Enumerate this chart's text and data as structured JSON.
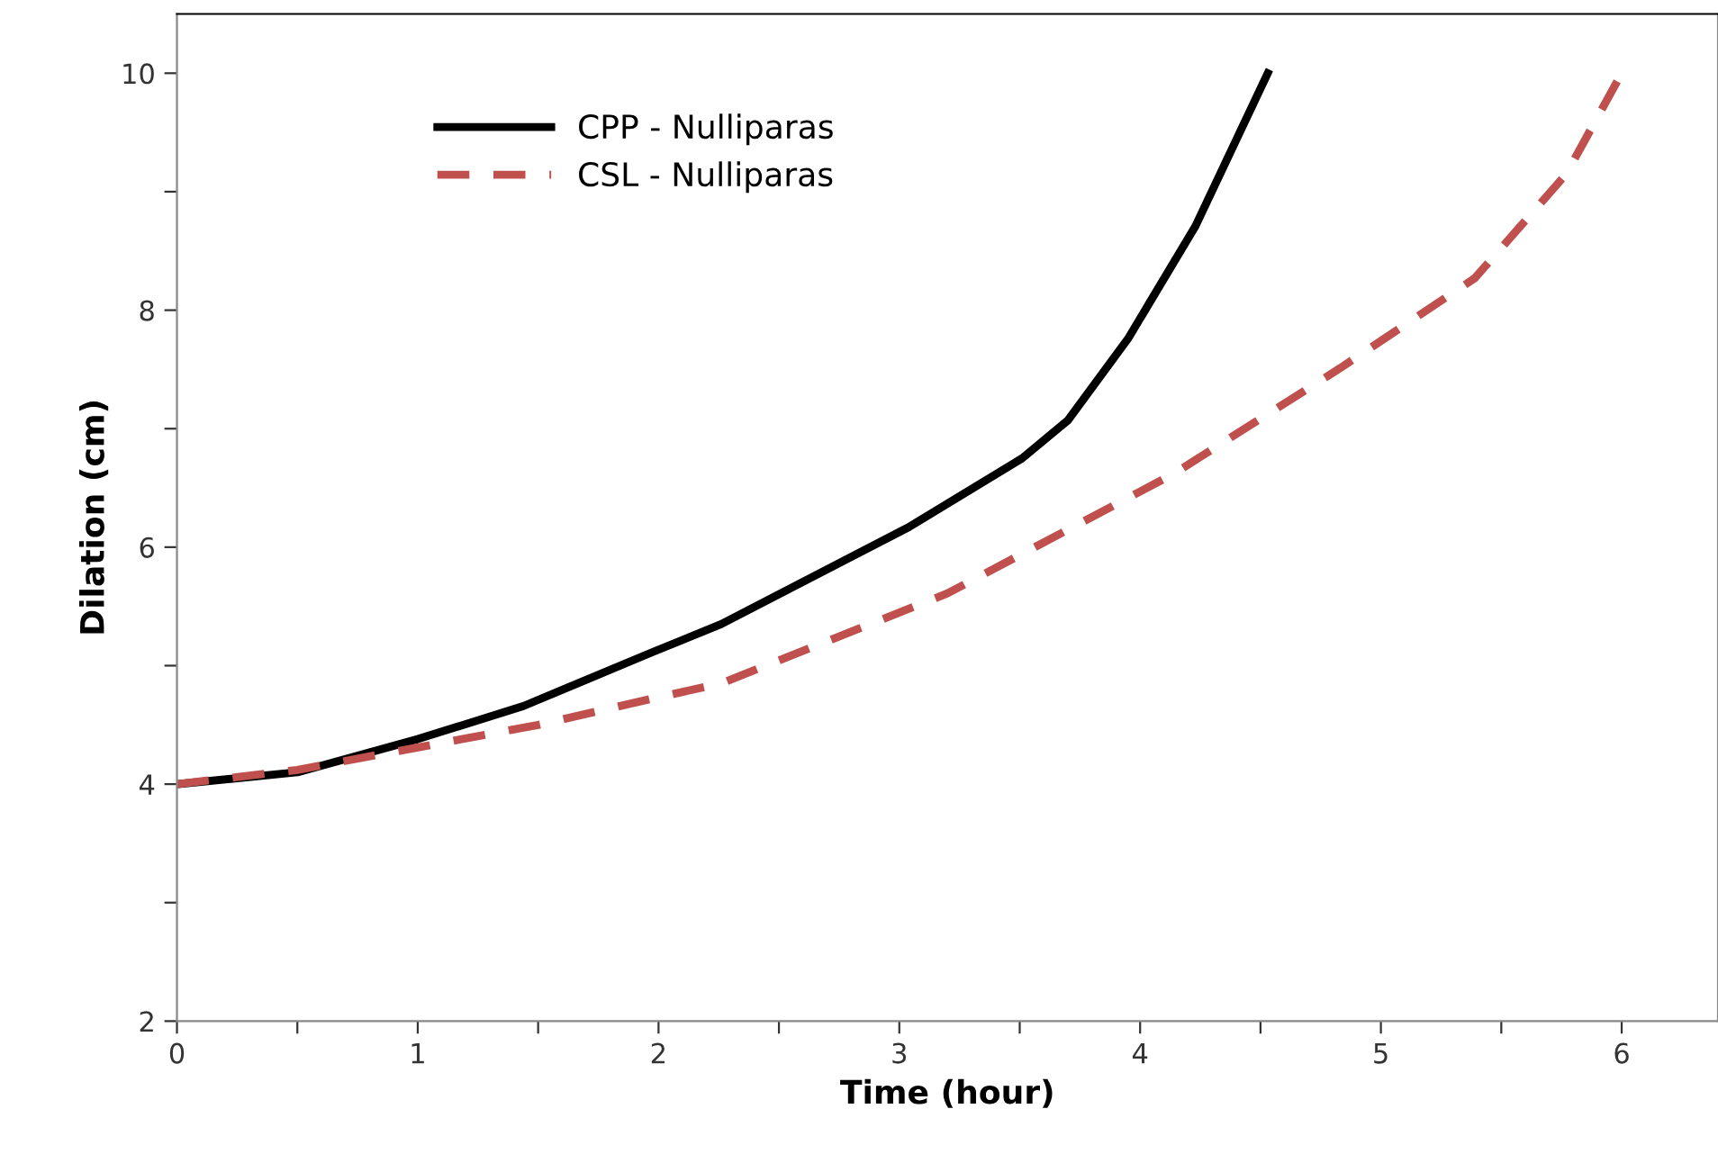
{
  "chart_data": {
    "type": "line",
    "xlabel": "Time (hour)",
    "ylabel": "Dilation (cm)",
    "xlim": [
      0,
      6.4
    ],
    "ylim": [
      2,
      10.5
    ],
    "xticks": [
      0,
      {
        "value": 0.5,
        "label": null
      },
      1,
      {
        "value": 1.5,
        "label": null
      },
      2,
      {
        "value": 2.5,
        "label": null
      },
      3,
      {
        "value": 3.5,
        "label": null
      },
      4,
      {
        "value": 4.5,
        "label": null
      },
      5,
      {
        "value": 5.5,
        "label": null
      },
      6
    ],
    "yticks": [
      2,
      {
        "value": 3,
        "label": null
      },
      4,
      {
        "value": 5,
        "label": null
      },
      6,
      {
        "value": 7,
        "label": null
      },
      8,
      {
        "value": 9,
        "label": null
      },
      10
    ],
    "grid": false,
    "legend": "top left",
    "series": [
      {
        "name": "CPP - Nulliparas",
        "color": "#000000",
        "line_style": "solid",
        "x": [
          0,
          0.5,
          1.0,
          1.44,
          1.97,
          2.26,
          3.04,
          3.51,
          3.7,
          3.95,
          4.23,
          4.53
        ],
        "values": [
          4.0,
          4.1,
          4.38,
          4.66,
          5.11,
          5.35,
          6.17,
          6.75,
          7.07,
          7.76,
          8.71,
          10.0
        ]
      },
      {
        "name": "CSL - Nulliparas",
        "color": "#c0504d",
        "line_style": "dashed",
        "x": [
          0,
          0.5,
          1.0,
          1.5,
          1.97,
          2.26,
          3.2,
          4.14,
          4.83,
          5.39,
          5.77,
          6.0
        ],
        "values": [
          4.0,
          4.12,
          4.31,
          4.5,
          4.72,
          4.85,
          5.61,
          6.62,
          7.51,
          8.27,
          9.15,
          10.0
        ]
      }
    ]
  }
}
